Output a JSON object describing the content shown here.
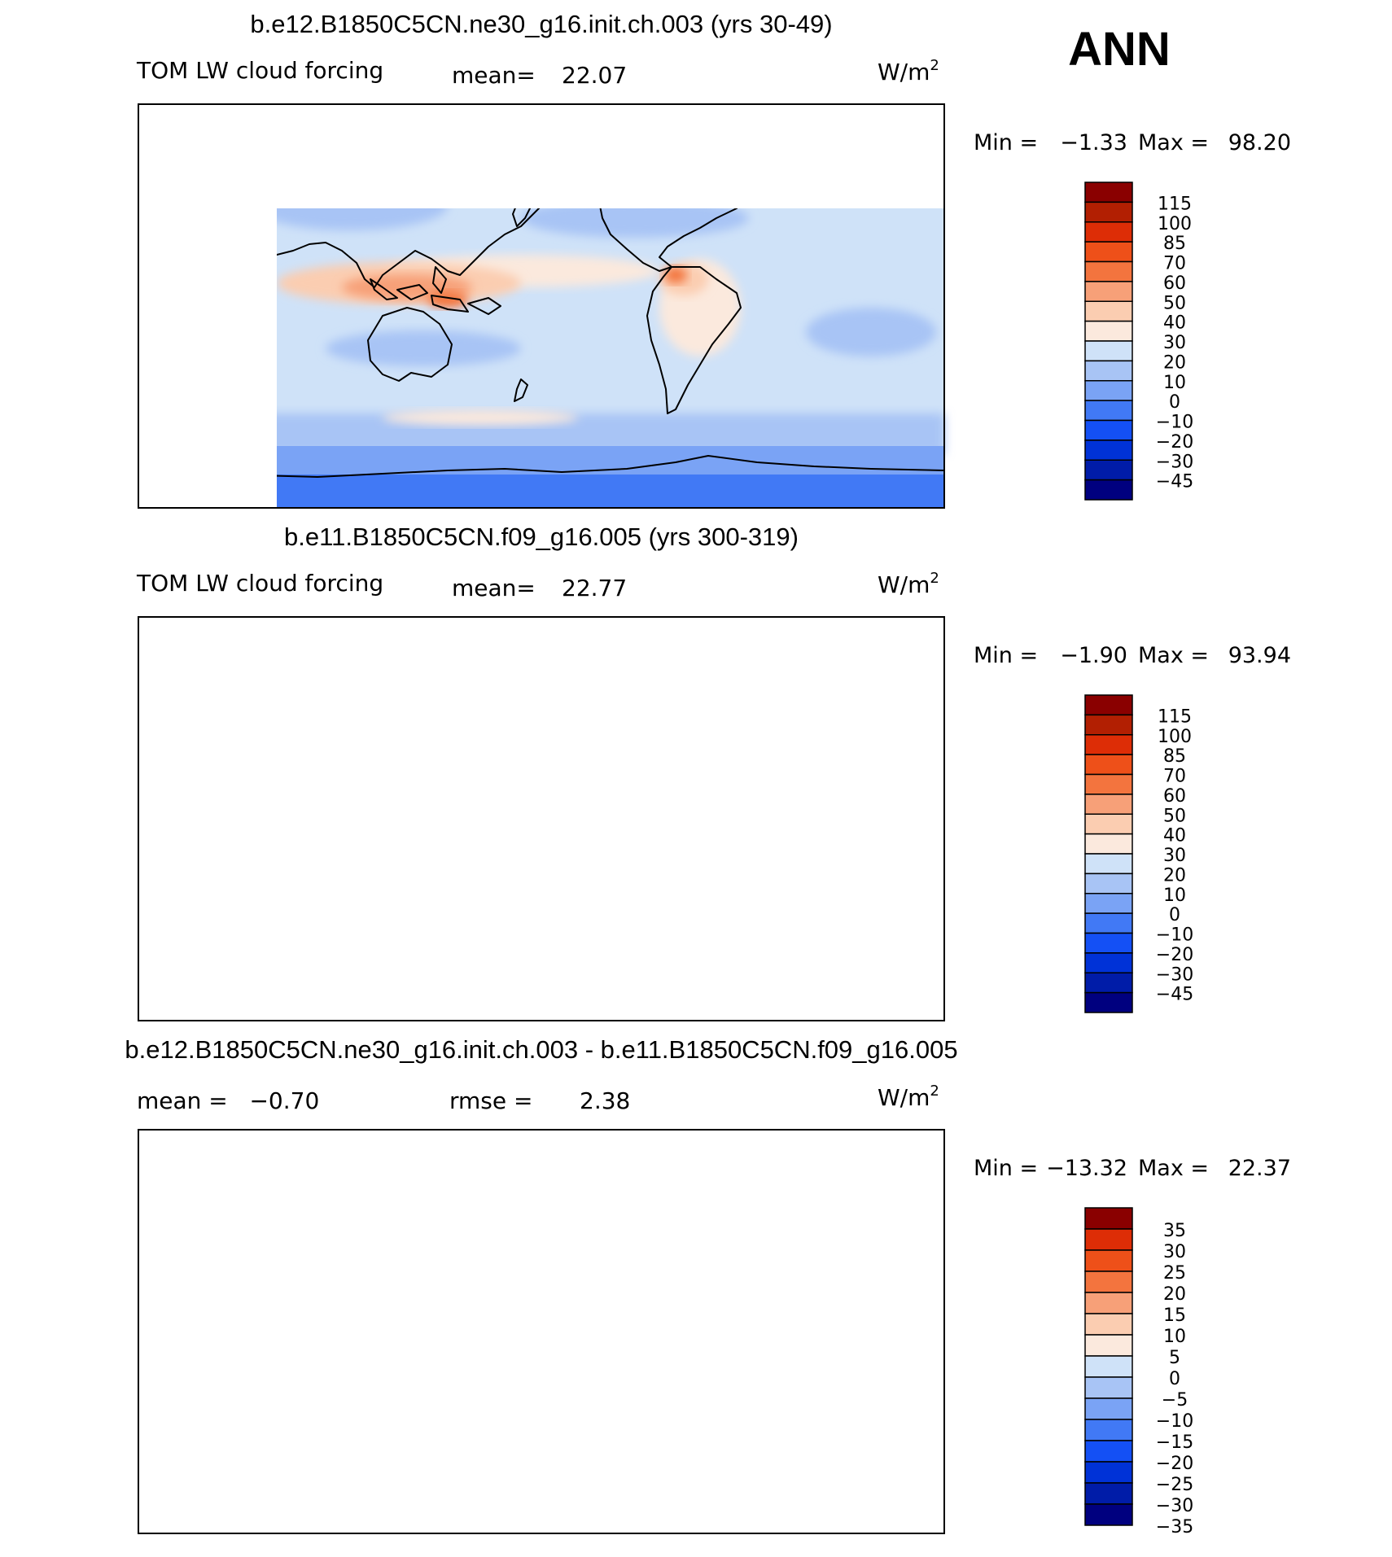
{
  "season": "ANN",
  "colors": {
    "abs": [
      "#00007f",
      "#001ca8",
      "#0032d7",
      "#1450f5",
      "#4179f5",
      "#7aa3f5",
      "#a8c4f5",
      "#cfe2f8",
      "#fbe9dd",
      "#fbcdb1",
      "#f7a078",
      "#f3743e",
      "#ee5019",
      "#dd2d06",
      "#b21f02",
      "#8a0000"
    ],
    "diff": [
      "#00007f",
      "#001ca8",
      "#0032d7",
      "#1450f5",
      "#4179f5",
      "#7aa3f5",
      "#a8c4f5",
      "#cfe2f8",
      "#fbe9dd",
      "#fbcdb1",
      "#f7a078",
      "#f3743e",
      "#ee5019",
      "#dd2d06",
      "#8a0000"
    ]
  },
  "panels": [
    {
      "title": "b.e12.B1850C5CN.ne30_g16.init.ch.003 (yrs 30-49)",
      "left_label": "TOM LW cloud forcing",
      "mid_label": "mean=",
      "mid_value": "22.07",
      "units_base": "W/m",
      "units_exp": "2",
      "min_label": "Min =",
      "min_value": "−1.33",
      "max_label": "Max =",
      "max_value": "98.20",
      "colorbar_labels": [
        "115",
        "100",
        "85",
        "70",
        "60",
        "50",
        "40",
        "30",
        "20",
        "10",
        "0",
        "−10",
        "−20",
        "−30",
        "−45"
      ]
    },
    {
      "title": "b.e11.B1850C5CN.f09_g16.005 (yrs 300-319)",
      "left_label": "TOM LW cloud forcing",
      "mid_label": "mean=",
      "mid_value": "22.77",
      "units_base": "W/m",
      "units_exp": "2",
      "min_label": "Min =",
      "min_value": "−1.90",
      "max_label": "Max =",
      "max_value": "93.94",
      "colorbar_labels": [
        "115",
        "100",
        "85",
        "70",
        "60",
        "50",
        "40",
        "30",
        "20",
        "10",
        "0",
        "−10",
        "−20",
        "−30",
        "−45"
      ]
    },
    {
      "title": "b.e12.B1850C5CN.ne30_g16.init.ch.003 - b.e11.B1850C5CN.f09_g16.005",
      "left_label": "mean =   −0.70",
      "mid_label": "rmse =",
      "mid_value": "2.38",
      "units_base": "W/m",
      "units_exp": "2",
      "min_label": "Min =",
      "min_value": "−13.32",
      "max_label": "Max =",
      "max_value": "22.37",
      "colorbar_labels": [
        "35",
        "30",
        "25",
        "20",
        "15",
        "10",
        "5",
        "0",
        "−5",
        "−10",
        "−15",
        "−20",
        "−25",
        "−30",
        "−35"
      ]
    }
  ]
}
